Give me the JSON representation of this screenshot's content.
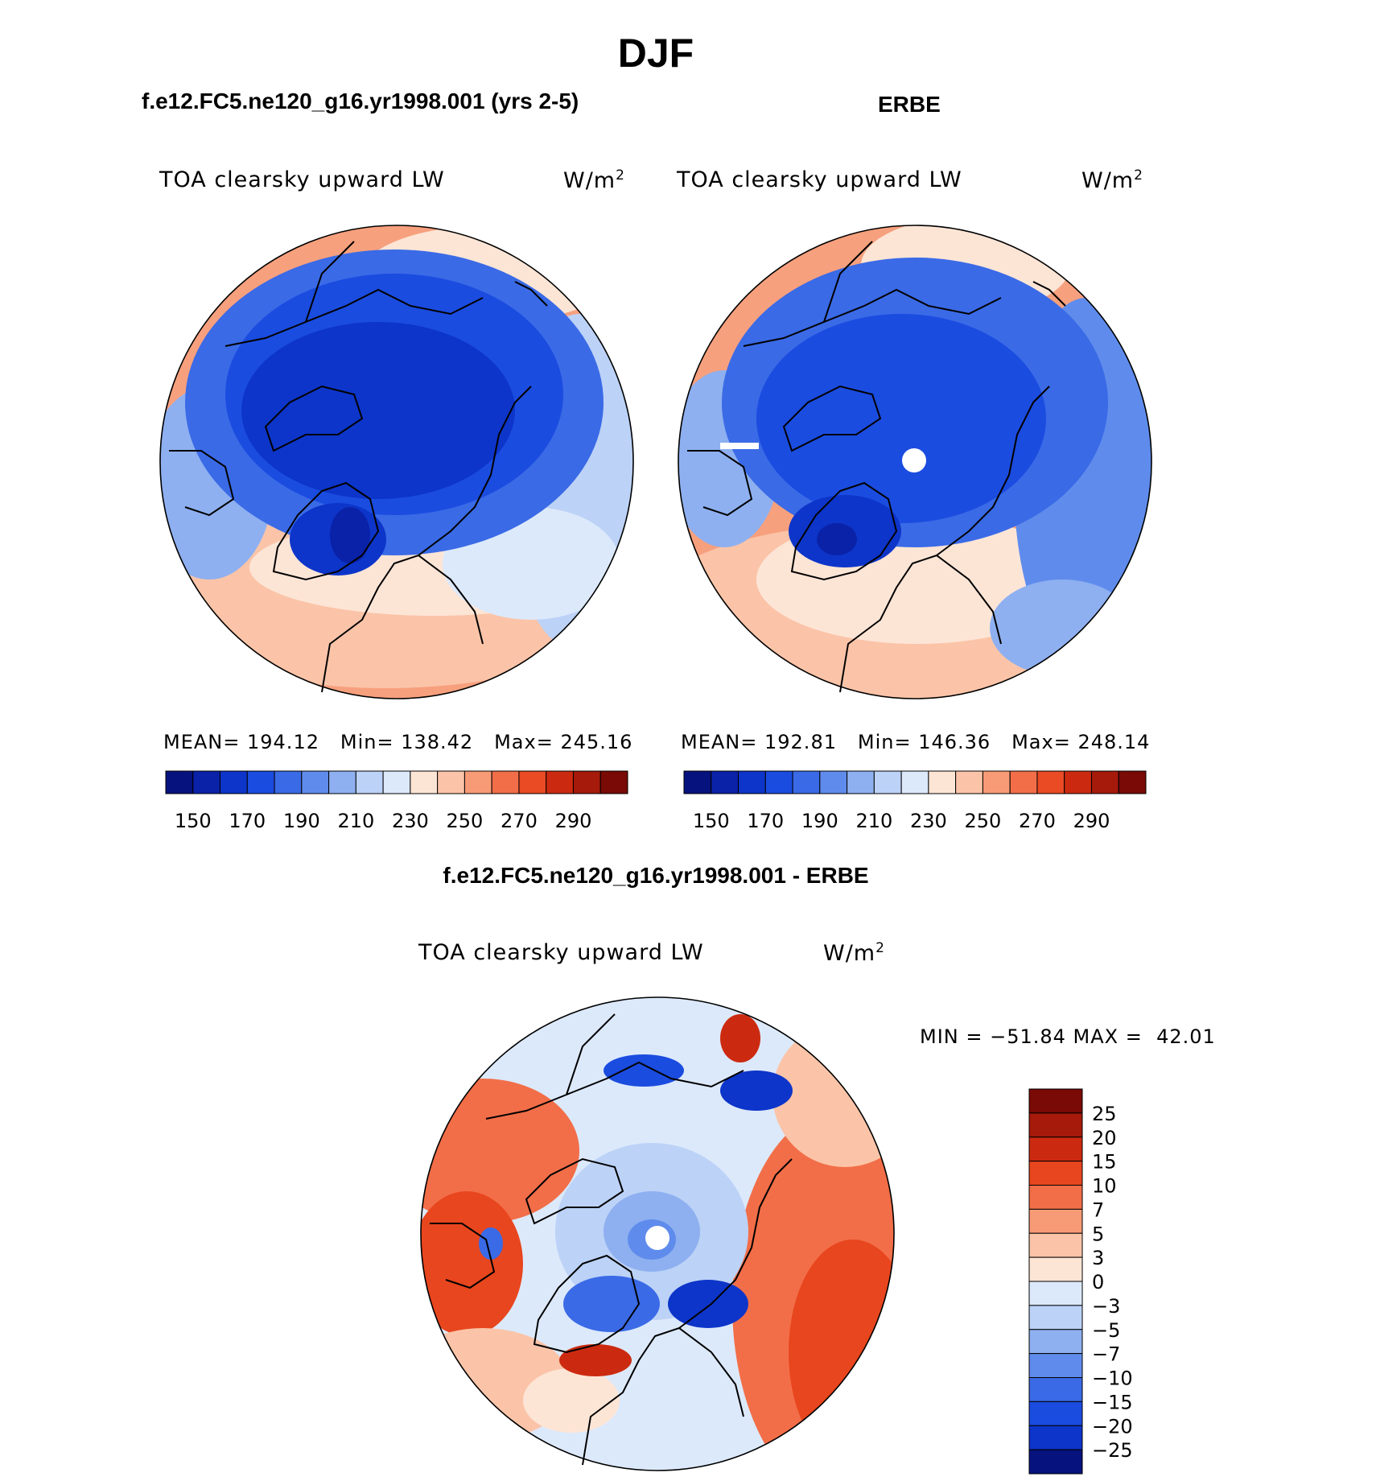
{
  "chart_data": {
    "type": "contour-map",
    "season": "DJF",
    "panels": [
      {
        "id": "model",
        "title": "f.e12.FC5.ne120_g16.yr1998.001 (yrs 2-5)",
        "variable": "TOA clearsky upward LW",
        "units_base": "W/m",
        "units_exp": "2",
        "stats": {
          "mean_label": "MEAN=",
          "mean": "194.12",
          "min_label": "Min=",
          "min": "138.42",
          "max_label": "Max=",
          "max": "245.16"
        },
        "levels": [
          150,
          160,
          170,
          180,
          190,
          200,
          210,
          220,
          230,
          240,
          250,
          260,
          270,
          280,
          290
        ],
        "tick_labels": [
          "150",
          "170",
          "190",
          "210",
          "230",
          "250",
          "270",
          "290"
        ]
      },
      {
        "id": "obs",
        "title": "ERBE",
        "variable": "TOA clearsky upward LW",
        "units_base": "W/m",
        "units_exp": "2",
        "stats": {
          "mean_label": "MEAN=",
          "mean": "192.81",
          "min_label": "Min=",
          "min": "146.36",
          "max_label": "Max=",
          "max": "248.14"
        },
        "levels": [
          150,
          160,
          170,
          180,
          190,
          200,
          210,
          220,
          230,
          240,
          250,
          260,
          270,
          280,
          290
        ],
        "tick_labels": [
          "150",
          "170",
          "190",
          "210",
          "230",
          "250",
          "270",
          "290"
        ]
      },
      {
        "id": "diff",
        "title": "f.e12.FC5.ne120_g16.yr1998.001 - ERBE",
        "variable": "TOA clearsky upward LW",
        "units_base": "W/m",
        "units_exp": "2",
        "stats_text": "MIN = −51.84 MAX =  42.01",
        "levels": [
          25,
          20,
          15,
          10,
          7,
          5,
          3,
          0,
          -3,
          -5,
          -7,
          -10,
          -15,
          -20,
          -25
        ],
        "tick_labels": [
          "25",
          "20",
          "15",
          "10",
          "7",
          "5",
          "3",
          "0",
          "−3",
          "−5",
          "−7",
          "−10",
          "−15",
          "−20",
          "−25"
        ]
      }
    ]
  },
  "colors": {
    "abs_palette": [
      "#06127d",
      "#0a22a8",
      "#0d35c9",
      "#1b4ce0",
      "#3a6ae6",
      "#5f8cec",
      "#8eb0f0",
      "#bcd2f7",
      "#dce9fb",
      "#fde5d6",
      "#fbc4a8",
      "#f79b76",
      "#f26e48",
      "#ea4a24",
      "#cc2a10",
      "#a51a0a",
      "#7a0a05"
    ],
    "diff_palette": [
      "#7a0a05",
      "#a51a0a",
      "#cc2a10",
      "#e8461e",
      "#f26e48",
      "#f79b76",
      "#fbc4a8",
      "#fde5d6",
      "#dce9fb",
      "#bcd2f7",
      "#8eb0f0",
      "#5f8cec",
      "#3a6ae6",
      "#1b4ce0",
      "#0d35c9",
      "#06127d"
    ]
  }
}
